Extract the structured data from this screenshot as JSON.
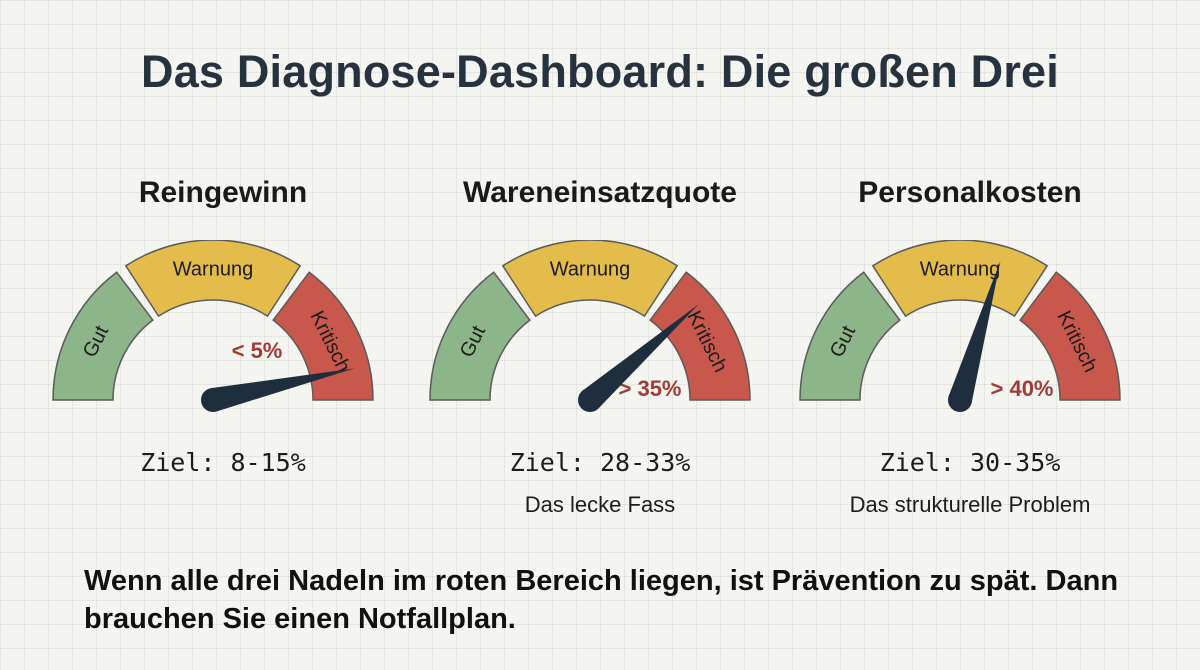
{
  "title": "Das Diagnose-Dashboard: Die großen Drei",
  "colors": {
    "gut": "#8db58a",
    "warnung": "#e4bc4c",
    "kritisch": "#c8584c",
    "needle": "#1f2e3d",
    "callout": "#a13c34"
  },
  "zone_labels": {
    "gut": "Gut",
    "warnung": "Warnung",
    "kritisch": "Kritisch"
  },
  "gauges": [
    {
      "title": "Reingewinn",
      "needle_level": 0.93,
      "callout": "< 5%",
      "target": "Ziel: 8-15%",
      "subtitle": ""
    },
    {
      "title": "Wareneinsatzquote",
      "needle_level": 0.77,
      "callout": "> 35%",
      "target": "Ziel: 28-33%",
      "subtitle": "Das lecke Fass"
    },
    {
      "title": "Personalkosten",
      "needle_level": 0.59,
      "callout": "> 40%",
      "target": "Ziel: 30-35%",
      "subtitle": "Das strukturelle Problem"
    }
  ],
  "footer": "Wenn alle drei Nadeln im roten Bereich liegen, ist Prävention zu spät. Dann brauchen Sie einen Notfallplan."
}
